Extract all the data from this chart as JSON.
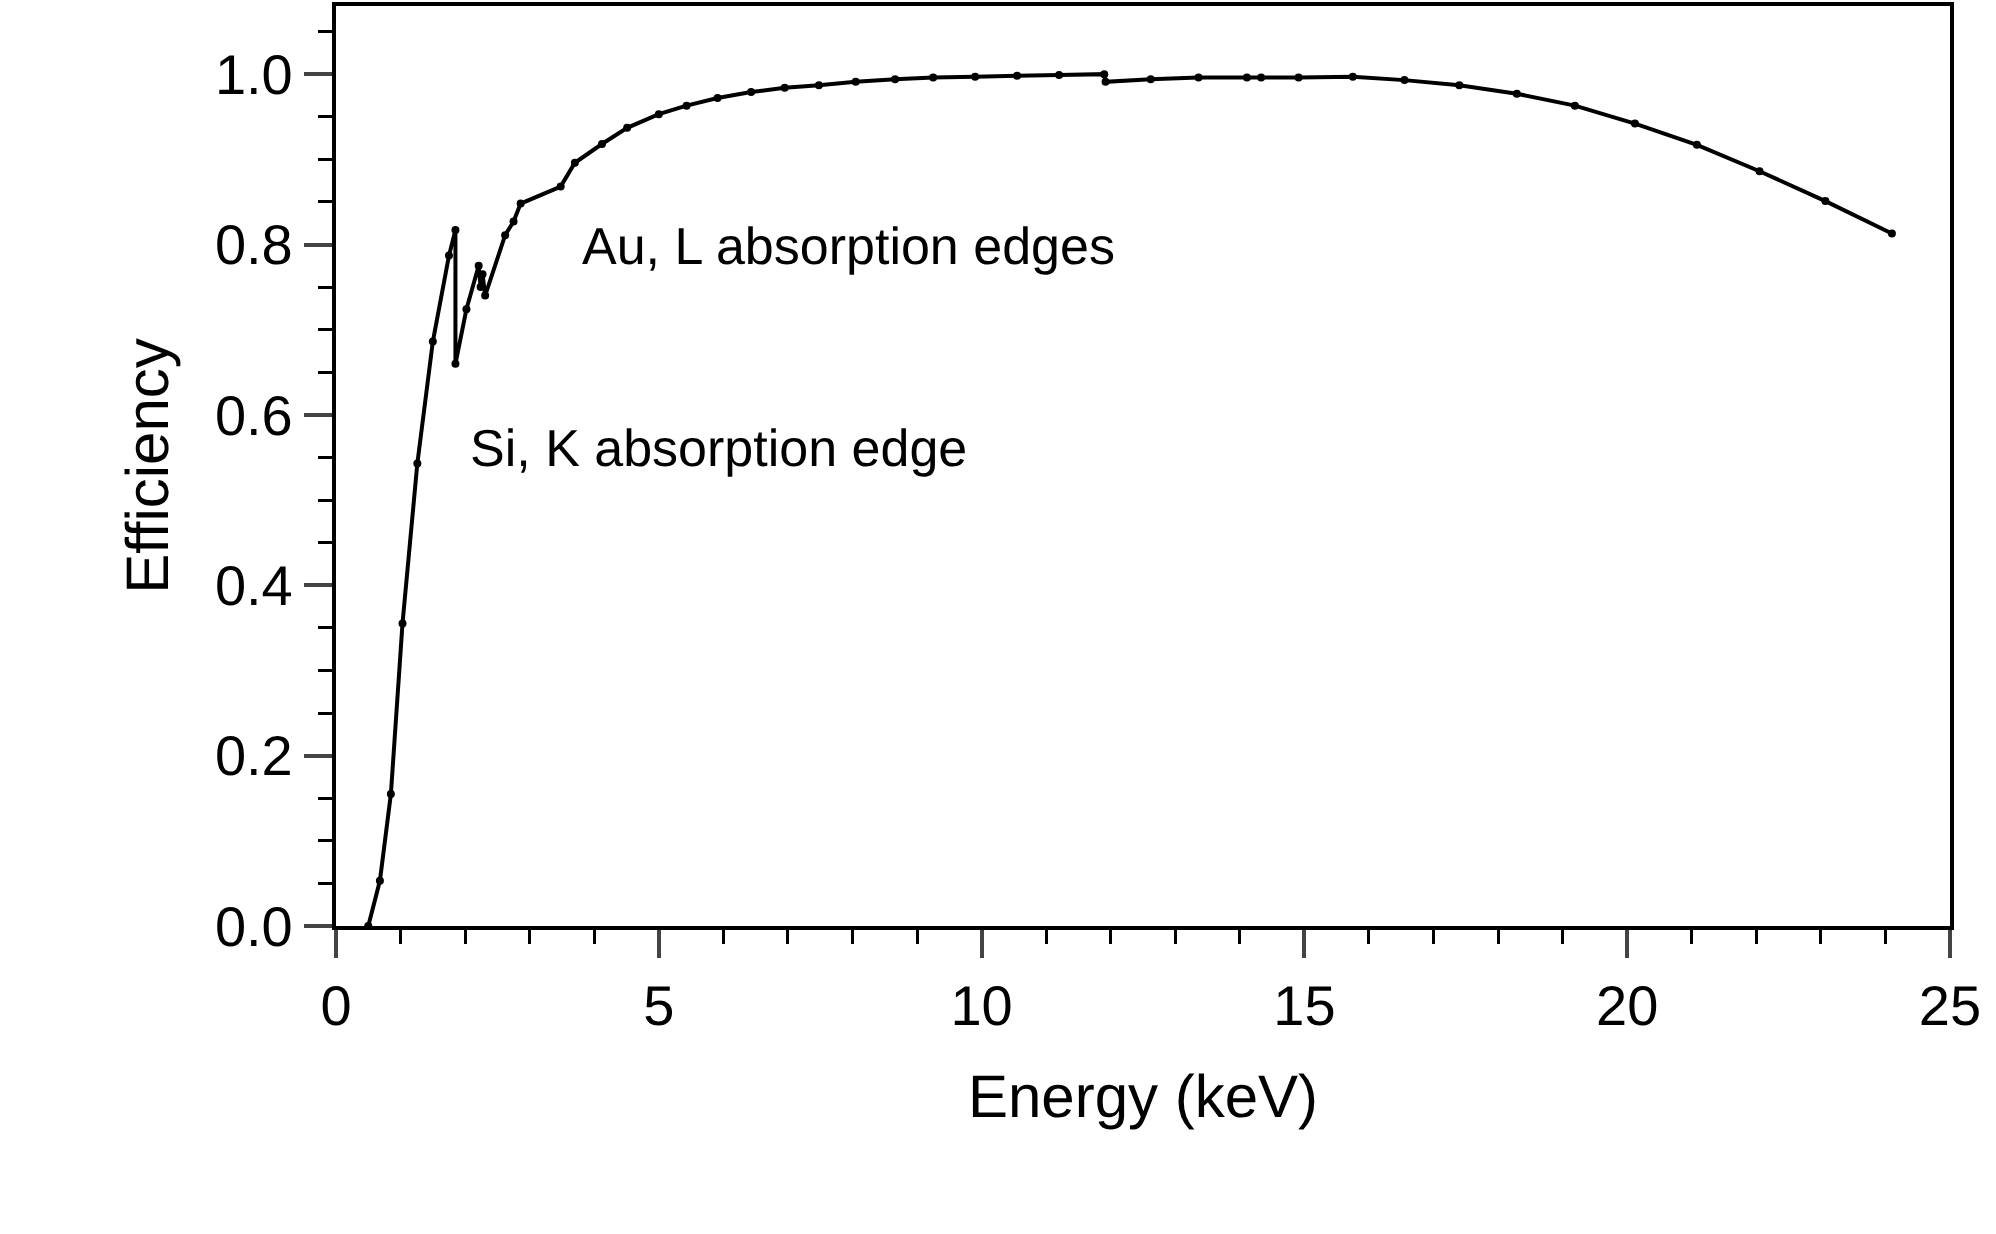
{
  "chart_data": {
    "type": "line",
    "xlabel": "Energy (keV)",
    "ylabel": "Efficiency",
    "x": [
      0.5,
      0.68,
      0.85,
      1.03,
      1.26,
      1.5,
      1.75,
      1.85,
      1.85,
      2.02,
      2.21,
      2.24,
      2.27,
      2.31,
      2.62,
      2.75,
      2.86,
      3.48,
      3.7,
      4.12,
      4.51,
      5.0,
      5.43,
      5.91,
      6.43,
      6.95,
      7.48,
      8.05,
      8.66,
      9.25,
      9.9,
      10.55,
      11.2,
      11.9,
      11.92,
      12.62,
      13.36,
      14.11,
      14.33,
      14.91,
      15.75,
      16.55,
      17.4,
      18.29,
      19.19,
      20.12,
      21.08,
      22.05,
      23.07,
      24.1
    ],
    "series": [
      {
        "color": "#000000",
        "values": [
          0.0,
          0.053,
          0.155,
          0.355,
          0.543,
          0.686,
          0.787,
          0.817,
          0.66,
          0.724,
          0.775,
          0.75,
          0.765,
          0.74,
          0.811,
          0.827,
          0.848,
          0.868,
          0.896,
          0.918,
          0.937,
          0.953,
          0.963,
          0.972,
          0.979,
          0.984,
          0.987,
          0.991,
          0.994,
          0.996,
          0.997,
          0.998,
          0.999,
          1.0,
          0.991,
          0.994,
          0.996,
          0.996,
          0.996,
          0.996,
          0.997,
          0.993,
          0.987,
          0.977,
          0.963,
          0.942,
          0.917,
          0.886,
          0.851,
          0.813
        ]
      }
    ],
    "xlim": [
      0,
      25
    ],
    "xticks": [
      0,
      5,
      10,
      15,
      20,
      25
    ],
    "ylim": [
      0,
      1.08
    ],
    "yticks": [
      {
        "value": 0,
        "label": "0.0"
      },
      {
        "value": 0.2,
        "label": "0.2"
      },
      {
        "value": 0.4,
        "label": "0.4"
      },
      {
        "value": 0.6,
        "label": "0.6"
      },
      {
        "value": 0.8,
        "label": "0.8"
      },
      {
        "value": 1,
        "label": "1.0"
      }
    ],
    "annotations": [
      "Au, L absorption edges",
      "Si, K absorption edge"
    ],
    "marker": "circle",
    "line_style": "solid"
  }
}
